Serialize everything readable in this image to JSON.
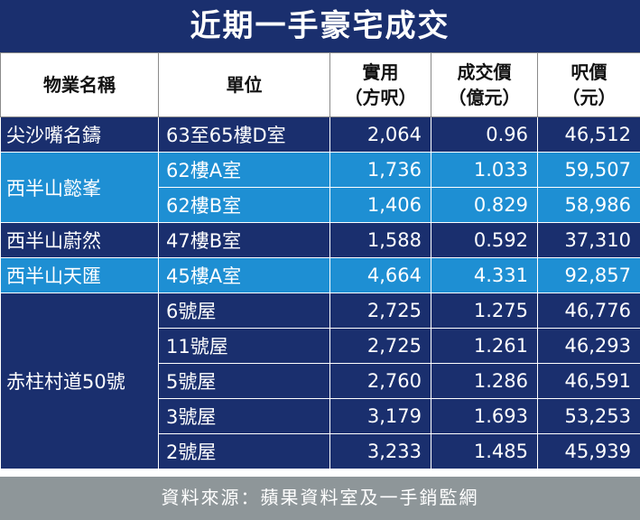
{
  "title": "近期一手豪宅成交",
  "headers": {
    "name": "物業名稱",
    "unit": "單位",
    "area_line1": "實用",
    "area_line2": "（方呎）",
    "price_line1": "成交價",
    "price_line2": "（億元）",
    "psf_line1": "呎價",
    "psf_line2": "（元）"
  },
  "projects": [
    "尖沙嘴名鑄",
    "西半山懿峯",
    "西半山蔚然",
    "西半山天匯",
    "赤柱村道50號"
  ],
  "rows": [
    {
      "unit": "63至65樓D室",
      "area": "2,064",
      "price": "0.96",
      "psf": "46,512"
    },
    {
      "unit": "62樓A室",
      "area": "1,736",
      "price": "1.033",
      "psf": "59,507"
    },
    {
      "unit": "62樓B室",
      "area": "1,406",
      "price": "0.829",
      "psf": "58,986"
    },
    {
      "unit": "47樓B室",
      "area": "1,588",
      "price": "0.592",
      "psf": "37,310"
    },
    {
      "unit": "45樓A室",
      "area": "4,664",
      "price": "4.331",
      "psf": "92,857"
    },
    {
      "unit": "6號屋",
      "area": "2,725",
      "price": "1.275",
      "psf": "46,776"
    },
    {
      "unit": "11號屋",
      "area": "2,725",
      "price": "1.261",
      "psf": "46,293"
    },
    {
      "unit": "5號屋",
      "area": "2,760",
      "price": "1.286",
      "psf": "46,591"
    },
    {
      "unit": "3號屋",
      "area": "3,179",
      "price": "1.693",
      "psf": "53,253"
    },
    {
      "unit": "2號屋",
      "area": "3,233",
      "price": "1.485",
      "psf": "45,939"
    }
  ],
  "footer": "資料來源：蘋果資料室及一手銷監網",
  "colors": {
    "dark_row": "#1a2f6e",
    "light_row": "#1e8fd3",
    "footer_bg": "#8e9699"
  }
}
